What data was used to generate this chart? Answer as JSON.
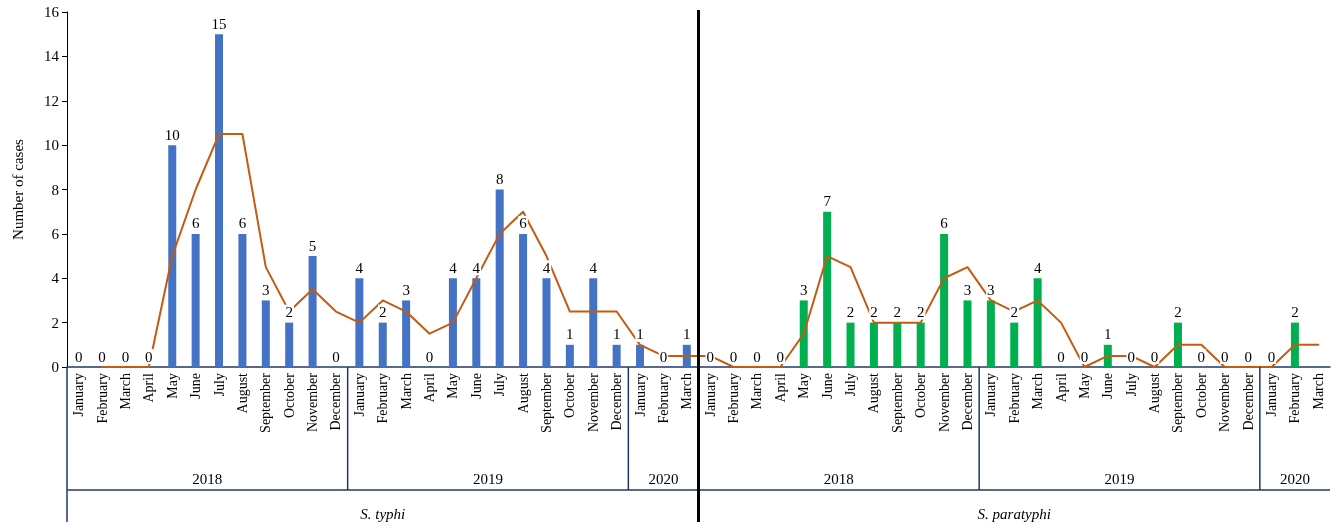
{
  "chart_data": {
    "type": "bar",
    "ylabel": "Number of cases",
    "ylim": [
      0,
      16
    ],
    "yticks": [
      0,
      2,
      4,
      6,
      8,
      10,
      12,
      14,
      16
    ],
    "grid": false,
    "categories": [
      "January",
      "February",
      "March",
      "April",
      "May",
      "June",
      "July",
      "August",
      "September",
      "October",
      "November",
      "December",
      "January",
      "February",
      "March",
      "April",
      "May",
      "June",
      "July",
      "August",
      "September",
      "October",
      "November",
      "December",
      "January",
      "February",
      "March",
      "January",
      "February",
      "March",
      "April",
      "May",
      "June",
      "July",
      "August",
      "September",
      "October",
      "November",
      "December",
      "January",
      "February",
      "March",
      "April",
      "May",
      "June",
      "July",
      "August",
      "September",
      "October",
      "November",
      "December",
      "January",
      "February",
      "March"
    ],
    "series": [
      {
        "color": "#4472c4",
        "values": [
          0,
          0,
          0,
          0,
          10,
          6,
          15,
          6,
          3,
          2,
          5,
          0,
          4,
          2,
          3,
          0,
          4,
          4,
          8,
          6,
          4,
          1,
          4,
          1,
          1,
          0,
          1,
          null,
          null,
          null,
          null,
          null,
          null,
          null,
          null,
          null,
          null,
          null,
          null,
          null,
          null,
          null,
          null,
          null,
          null,
          null,
          null,
          null,
          null,
          null,
          null,
          null,
          null,
          null
        ],
        "value_labels": [
          "0",
          "0",
          "0",
          "0",
          "10",
          "6",
          "15",
          "6",
          "3",
          "2",
          "5",
          "0",
          "4",
          "2",
          "3",
          "0",
          "4",
          "4",
          "8",
          "6",
          "4",
          "1",
          "4",
          "1",
          "1",
          "0",
          "1",
          null,
          null,
          null,
          null,
          null,
          null,
          null,
          null,
          null,
          null,
          null,
          null,
          null,
          null,
          null,
          null,
          null,
          null,
          null,
          null,
          null,
          null,
          null,
          null,
          null,
          null,
          null
        ]
      },
      {
        "color": "#00b050",
        "values": [
          null,
          null,
          null,
          null,
          null,
          null,
          null,
          null,
          null,
          null,
          null,
          null,
          null,
          null,
          null,
          null,
          null,
          null,
          null,
          null,
          null,
          null,
          null,
          null,
          null,
          null,
          null,
          0,
          0,
          0,
          0,
          3,
          7,
          2,
          2,
          2,
          2,
          6,
          3,
          3,
          2,
          4,
          0,
          0,
          1,
          0,
          0,
          2,
          0,
          0,
          0,
          0,
          2,
          0
        ],
        "value_labels": [
          null,
          null,
          null,
          null,
          null,
          null,
          null,
          null,
          null,
          null,
          null,
          null,
          null,
          null,
          null,
          null,
          null,
          null,
          null,
          null,
          null,
          null,
          null,
          null,
          null,
          null,
          null,
          "0",
          "0",
          "0",
          "0",
          "3",
          "7",
          "2",
          "2",
          "2",
          "2",
          "6",
          "3",
          "3",
          "2",
          "4",
          "0",
          "0",
          "1",
          "0",
          "0",
          "2",
          "0",
          "0",
          "0",
          "0",
          "2",
          null
        ]
      },
      {
        "type": "line",
        "color": "#c55a11",
        "marker": "none",
        "line_style": "solid",
        "values": [
          null,
          0,
          0,
          0,
          5,
          8,
          10.5,
          10.5,
          4.5,
          2.5,
          3.5,
          2.5,
          2,
          3,
          2.5,
          1.5,
          2,
          4,
          6,
          7,
          5,
          2.5,
          2.5,
          2.5,
          1,
          0.5,
          0.5,
          0.5,
          0,
          0,
          0,
          1.5,
          5,
          4.5,
          2,
          2,
          2,
          4,
          4.5,
          3,
          2.5,
          3,
          2,
          0,
          0.5,
          0.5,
          0,
          1,
          1,
          0,
          0,
          0,
          1,
          1
        ]
      }
    ],
    "annotations": [
      "2018",
      "2019",
      "2020",
      "S. typhi",
      "2018",
      "2019",
      "2020",
      "S. paratyphi"
    ]
  }
}
